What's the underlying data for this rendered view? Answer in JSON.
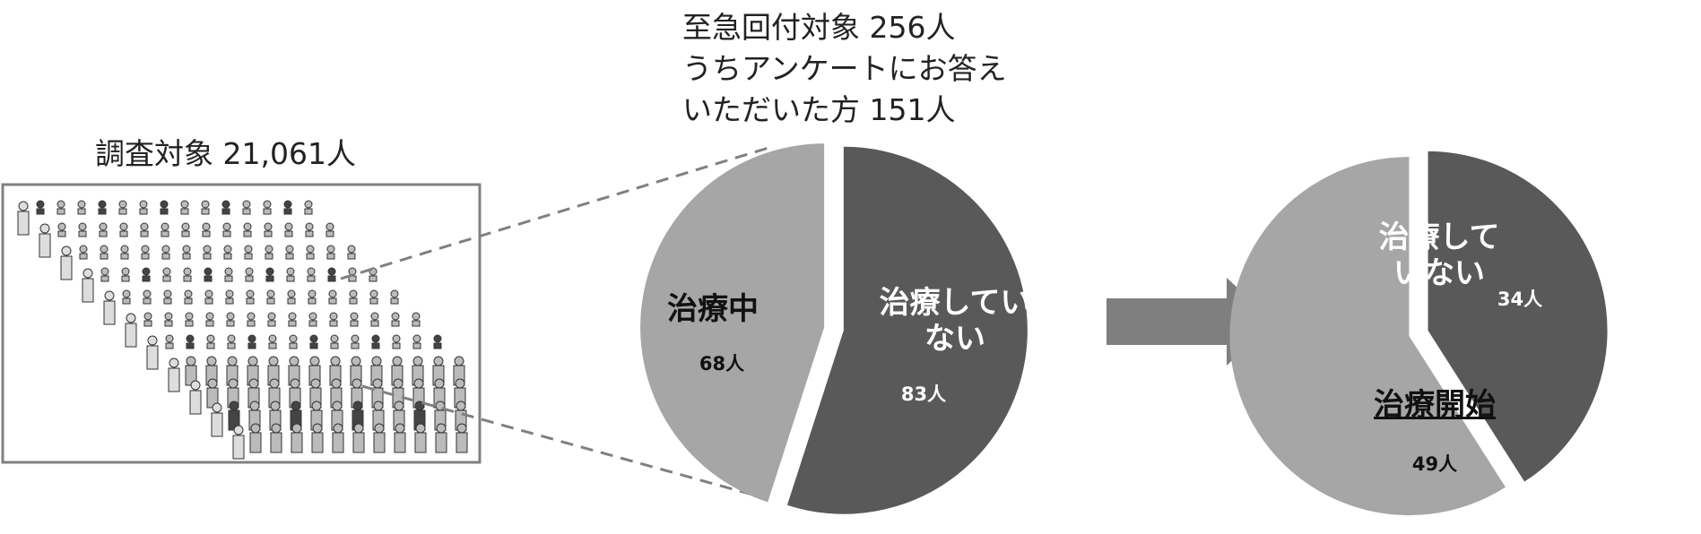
{
  "population_label": "調査対象 21,061人",
  "chart_data": [
    {
      "type": "pie",
      "title": [
        "至急回付対象 256人",
        "うちアンケートにお答え",
        "いただいた方 151人"
      ],
      "categories": [
        "治療していない",
        "治療中"
      ],
      "values": [
        83,
        68
      ],
      "value_labels": [
        "83人",
        "68人"
      ],
      "colors": [
        "#595959",
        "#a6a6a6"
      ]
    },
    {
      "type": "pie",
      "categories": [
        "治療していない",
        "治療開始"
      ],
      "values": [
        34,
        49
      ],
      "value_labels": [
        "34人",
        "49人"
      ],
      "colors": [
        "#595959",
        "#a6a6a6"
      ]
    }
  ]
}
